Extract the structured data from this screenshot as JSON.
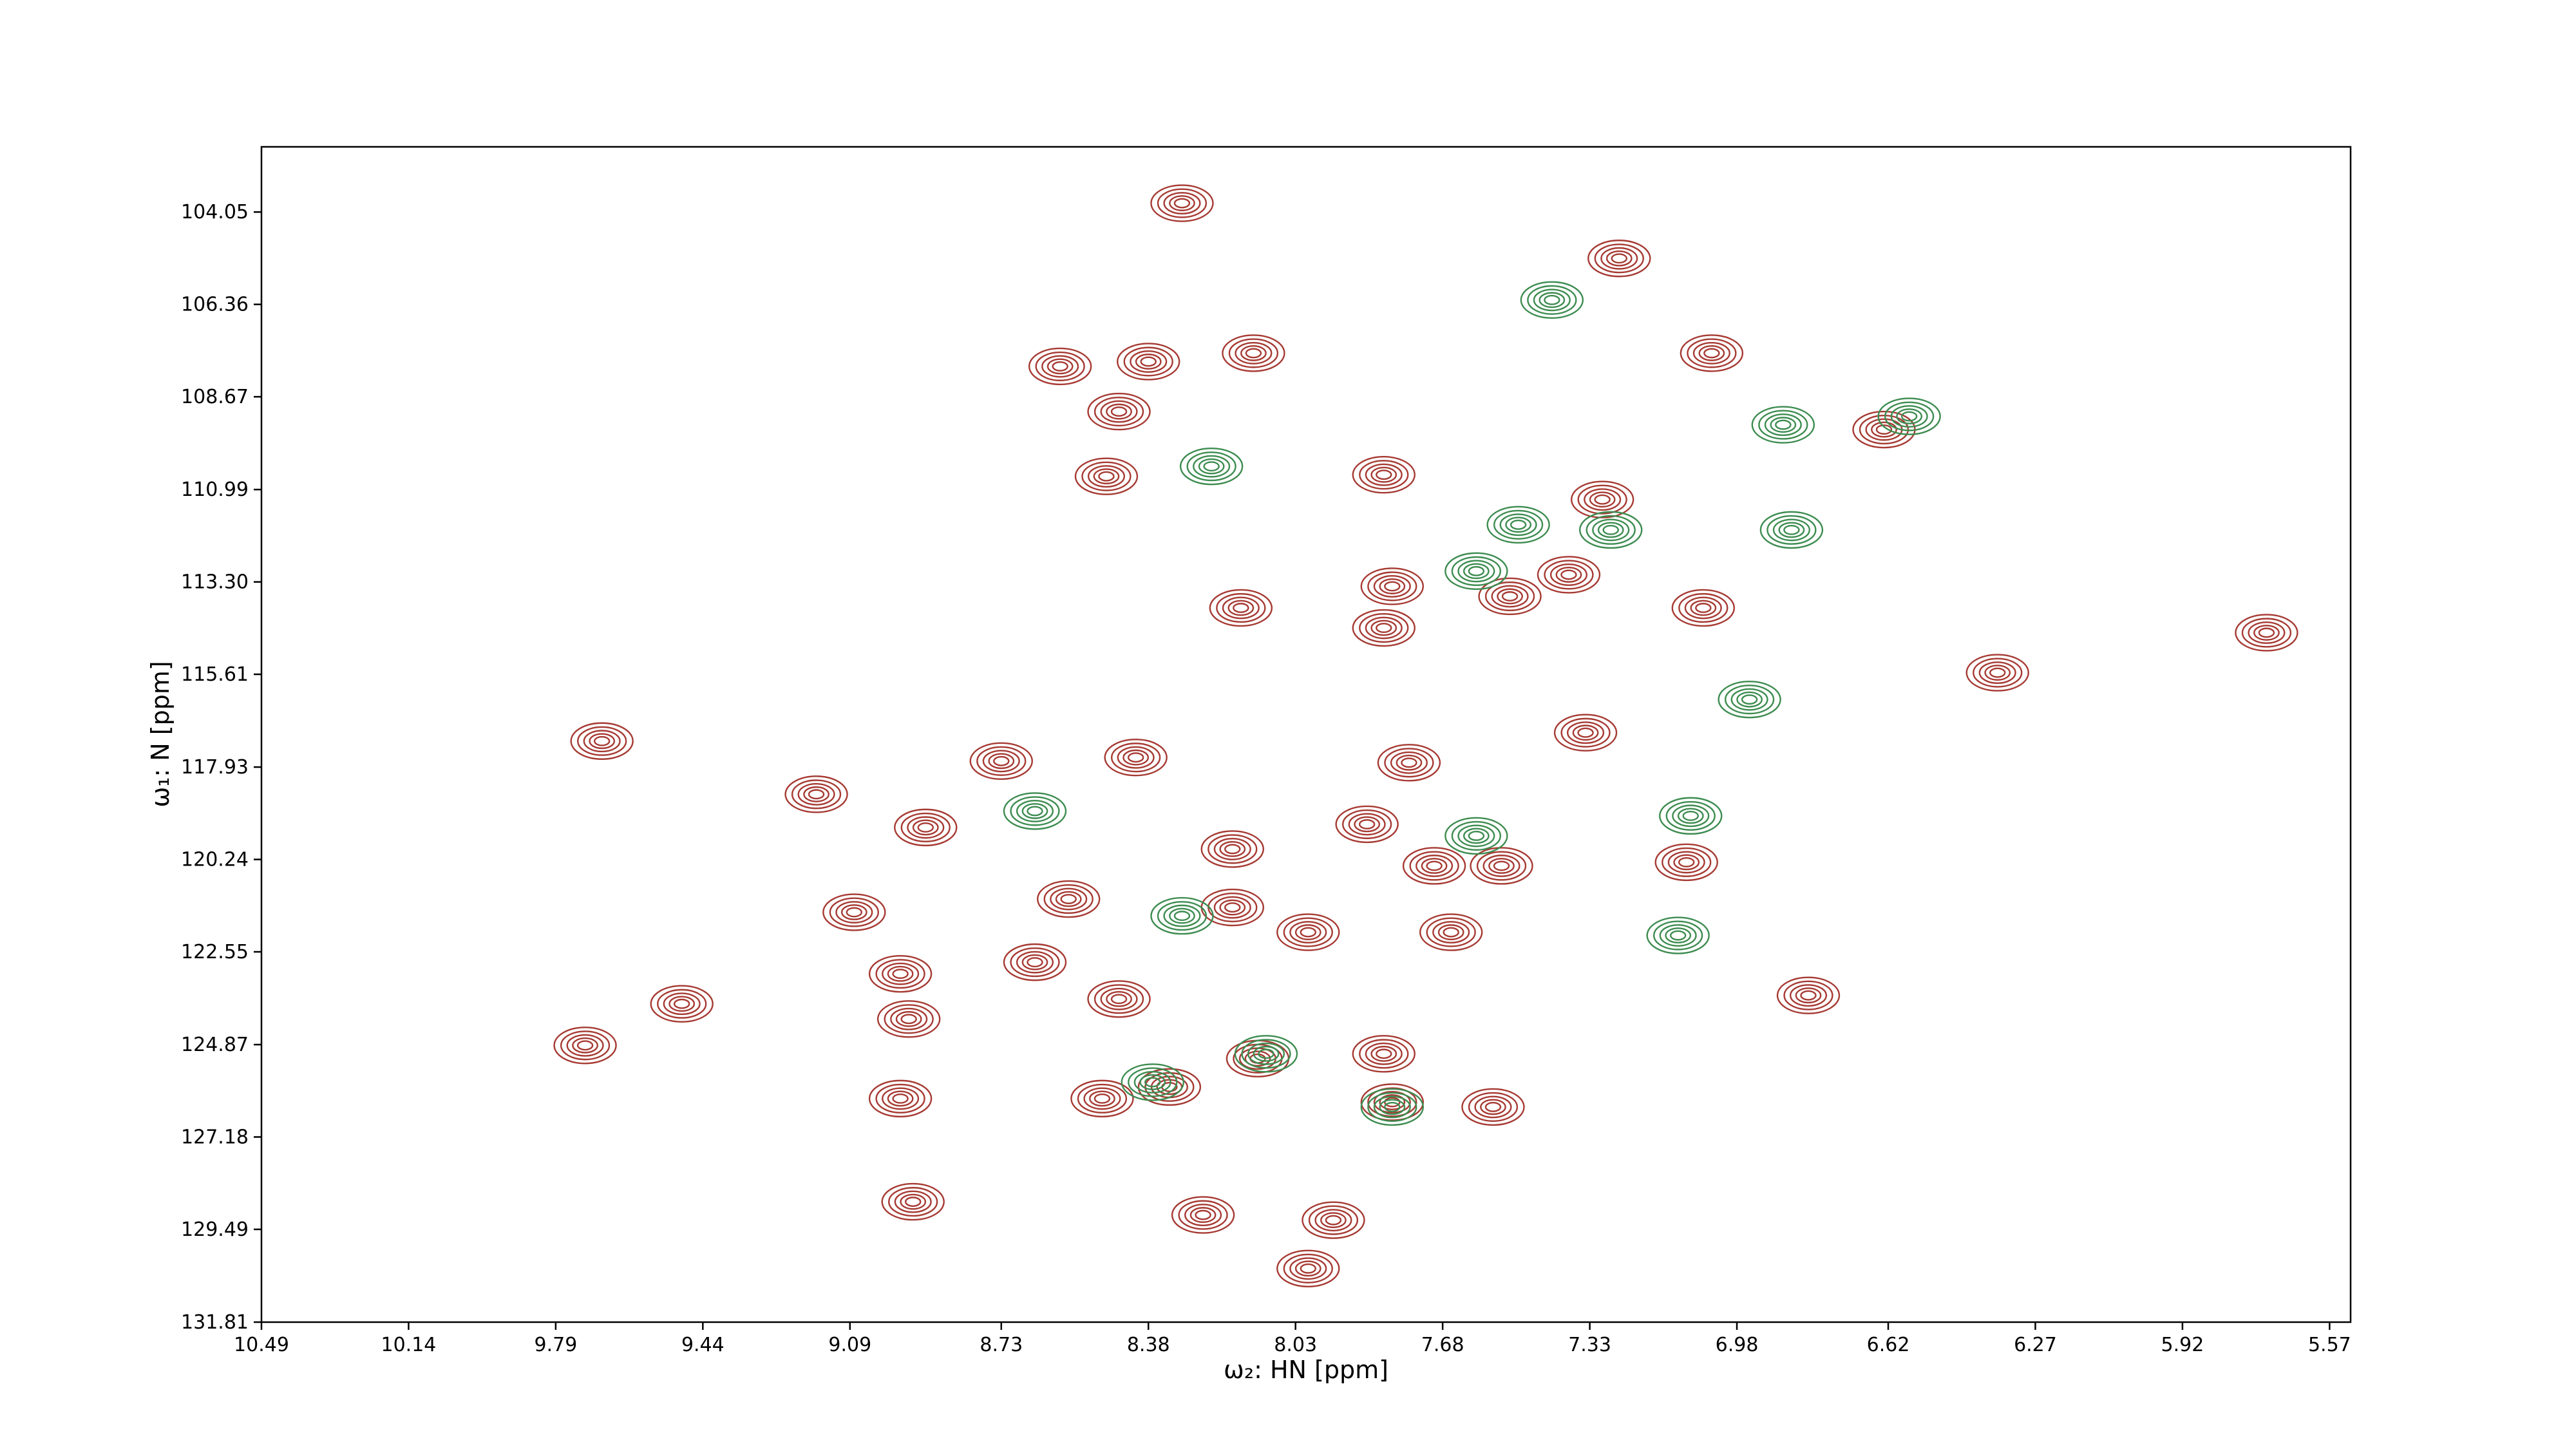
{
  "chart_data": {
    "type": "contour",
    "x_label": "ω₂: HN [ppm]",
    "y_label": "ω₁: N [ppm]",
    "xlim": [
      10.49,
      5.52
    ],
    "ylim": [
      131.81,
      102.42
    ],
    "xticks": [
      10.49,
      10.14,
      9.79,
      9.44,
      9.09,
      8.73,
      8.38,
      8.03,
      7.68,
      7.33,
      6.98,
      6.62,
      6.27,
      5.92,
      5.57
    ],
    "yticks": [
      104.05,
      106.36,
      108.67,
      110.99,
      {
        "value": 113.3,
        "label": "113.30"
      },
      115.61,
      117.93,
      120.24,
      122.55,
      124.87,
      127.18,
      129.49,
      131.81
    ],
    "series": [
      {
        "color": "#a63a33",
        "x": [
          8.3,
          8.13,
          8.38,
          8.59,
          8.45,
          8.48,
          7.26,
          7.04,
          6.63,
          7.82,
          7.3,
          7.38,
          7.52,
          7.8,
          7.82,
          8.16,
          7.06,
          5.72,
          6.36,
          7.34,
          7.76,
          8.41,
          8.73,
          9.17,
          9.68,
          8.91,
          7.86,
          7.54,
          7.1,
          8.18,
          7.7,
          8.57,
          8.18,
          8.0,
          7.66,
          9.08,
          8.97,
          8.65,
          8.45,
          9.49,
          9.72,
          8.95,
          6.81,
          8.12,
          7.82,
          8.33,
          7.8,
          8.97,
          8.49,
          8.25,
          7.94,
          8.0,
          8.94,
          7.56
        ],
        "y": [
          103.83,
          107.58,
          107.79,
          107.91,
          109.04,
          110.66,
          105.21,
          107.58,
          109.49,
          110.62,
          111.24,
          113.12,
          113.66,
          113.41,
          114.45,
          113.95,
          113.95,
          114.57,
          115.57,
          117.07,
          117.82,
          117.69,
          117.78,
          118.61,
          117.28,
          119.44,
          119.36,
          120.4,
          120.31,
          119.98,
          120.4,
          121.23,
          121.44,
          122.06,
          122.06,
          121.56,
          123.1,
          122.81,
          123.73,
          123.85,
          124.89,
          124.23,
          123.64,
          125.22,
          125.1,
          125.93,
          126.31,
          126.22,
          126.22,
          129.13,
          129.26,
          130.47,
          128.8,
          126.43
        ]
      },
      {
        "color": "#3d8c50",
        "x": [
          7.42,
          8.23,
          7.5,
          7.28,
          7.6,
          6.85,
          6.87,
          6.57,
          6.95,
          7.09,
          7.6,
          8.3,
          8.65,
          7.12,
          7.8,
          8.1,
          8.37
        ],
        "y": [
          106.25,
          110.41,
          111.87,
          112.0,
          113.03,
          112.0,
          109.37,
          109.16,
          116.24,
          119.15,
          119.65,
          121.65,
          119.03,
          122.14,
          126.43,
          125.1,
          125.81
        ]
      }
    ]
  }
}
